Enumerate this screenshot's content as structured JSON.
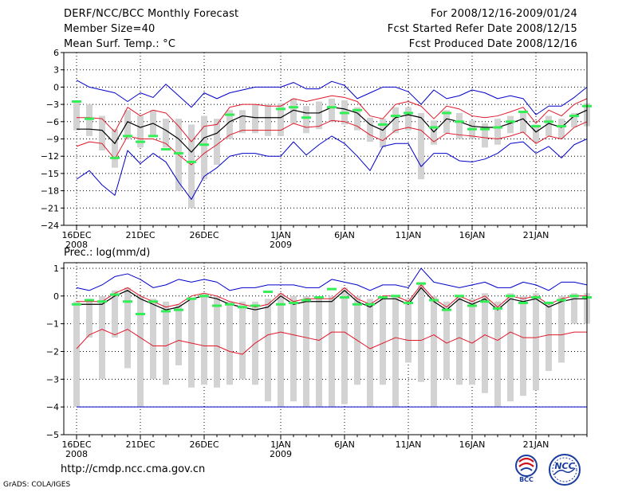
{
  "header": {
    "title": "DERF/NCC/BCC Monthly Forecast",
    "member": "Member Size=40",
    "variable": "Mean Surf. Temp.: °C",
    "period": "For 2008/12/16-2009/01/24",
    "started": "Fcst Started Refer Date 2008/12/15",
    "produced": "Fcst Produced Date 2008/12/16"
  },
  "footer": {
    "url": "http://cmdp.ncc.cma.gov.cn",
    "credit": "GrADS: COLA/IGES",
    "logo_bcc": "BCC",
    "logo_ncc": "NCC"
  },
  "colors": {
    "ensemble_mean": "#000000",
    "spread": "#e0182a",
    "extremes": "#0000cc",
    "box": "#d3d3d3",
    "obs_mark": "#33ee55",
    "grid": "#000000"
  },
  "chart_data": [
    {
      "type": "line",
      "title": "Mean Surf. Temp.: °C",
      "xlabel": "",
      "ylabel": "°C",
      "ylim": [
        -24,
        6
      ],
      "yticks": [
        6,
        3,
        0,
        -3,
        -6,
        -9,
        -12,
        -15,
        -18,
        -21,
        -24
      ],
      "xticks": [
        {
          "day": 1,
          "label": "16DEC",
          "sub": "2008"
        },
        {
          "day": 6,
          "label": "21DEC",
          "sub": ""
        },
        {
          "day": 11,
          "label": "26DEC",
          "sub": ""
        },
        {
          "day": 17,
          "label": "1JAN",
          "sub": "2009"
        },
        {
          "day": 22,
          "label": "6JAN",
          "sub": ""
        },
        {
          "day": 27,
          "label": "11JAN",
          "sub": ""
        },
        {
          "day": 32,
          "label": "16JAN",
          "sub": ""
        },
        {
          "day": 37,
          "label": "21JAN",
          "sub": ""
        }
      ],
      "series": [
        {
          "name": "ensemble mean",
          "values": [
            -7.3,
            -7.3,
            -7.5,
            -9.8,
            -6.0,
            -7.0,
            -6.3,
            -7.5,
            -9.0,
            -11.3,
            -8.8,
            -8.0,
            -6.0,
            -5.0,
            -5.3,
            -5.3,
            -5.3,
            -4.0,
            -4.5,
            -4.5,
            -3.5,
            -3.8,
            -4.5,
            -6.5,
            -7.5,
            -5.3,
            -4.8,
            -5.3,
            -7.8,
            -5.5,
            -6.0,
            -6.8,
            -7.0,
            -7.0,
            -6.3,
            -5.5,
            -7.8,
            -6.3,
            -7.0,
            -5.0,
            -4.0
          ]
        },
        {
          "name": "mean + spread",
          "values": [
            -5.3,
            -5.3,
            -5.5,
            -7.8,
            -3.5,
            -5.0,
            -4.0,
            -4.5,
            -6.8,
            -9.5,
            -6.8,
            -6.5,
            -3.5,
            -3.0,
            -3.0,
            -3.3,
            -3.3,
            -2.0,
            -2.5,
            -2.0,
            -1.5,
            -1.8,
            -2.5,
            -5.0,
            -5.5,
            -3.0,
            -2.5,
            -3.3,
            -5.5,
            -3.3,
            -3.8,
            -5.0,
            -5.3,
            -5.0,
            -4.3,
            -3.5,
            -6.3,
            -4.0,
            -5.0,
            -3.0,
            -2.0
          ]
        },
        {
          "name": "mean - spread",
          "values": [
            -10.3,
            -9.5,
            -9.8,
            -12.5,
            -8.5,
            -9.0,
            -9.0,
            -9.8,
            -11.8,
            -13.5,
            -11.5,
            -10.0,
            -8.3,
            -7.5,
            -7.5,
            -7.5,
            -7.5,
            -6.3,
            -7.0,
            -6.8,
            -5.8,
            -6.0,
            -6.8,
            -8.3,
            -9.3,
            -7.5,
            -7.0,
            -7.5,
            -9.5,
            -8.0,
            -8.3,
            -8.5,
            -8.8,
            -9.0,
            -8.5,
            -7.8,
            -9.8,
            -8.5,
            -9.0,
            -7.0,
            -6.0
          ]
        },
        {
          "name": "max",
          "values": [
            1.2,
            0.0,
            -0.5,
            -1.0,
            -2.5,
            -1.0,
            -1.8,
            0.5,
            -1.5,
            -3.5,
            -1.0,
            -2.0,
            -1.0,
            -0.5,
            0.0,
            0.0,
            0.0,
            0.8,
            -0.3,
            -0.3,
            1.0,
            0.3,
            -2.0,
            -1.0,
            0.0,
            0.0,
            -0.8,
            -3.0,
            -0.5,
            -2.0,
            -1.5,
            -0.5,
            -1.0,
            -2.0,
            -1.5,
            -2.0,
            -4.8,
            -3.3,
            -3.3,
            -1.8,
            0.0
          ]
        },
        {
          "name": "min",
          "values": [
            -16.0,
            -14.5,
            -17.0,
            -18.8,
            -11.0,
            -13.3,
            -11.5,
            -13.0,
            -16.5,
            -19.5,
            -15.5,
            -14.0,
            -12.0,
            -11.5,
            -11.5,
            -12.0,
            -12.0,
            -9.5,
            -11.8,
            -10.0,
            -8.5,
            -9.8,
            -12.0,
            -14.5,
            -10.3,
            -9.8,
            -9.8,
            -13.8,
            -11.5,
            -11.5,
            -12.8,
            -13.0,
            -12.5,
            -11.5,
            -9.8,
            -9.5,
            -11.5,
            -10.3,
            -12.3,
            -10.0,
            -9.0
          ]
        },
        {
          "name": "box high",
          "values": [
            -2.5,
            -3.0,
            -5.0,
            -7.3,
            -4.0,
            -5.0,
            -4.0,
            -5.5,
            -5.5,
            -6.5,
            -5.0,
            -5.5,
            -4.0,
            -4.0,
            -3.0,
            -3.0,
            -2.8,
            -2.0,
            -3.3,
            -2.5,
            -2.0,
            -2.3,
            -3.5,
            -5.3,
            -5.5,
            -3.5,
            -3.5,
            -4.5,
            -5.8,
            -4.0,
            -4.5,
            -5.8,
            -6.3,
            -5.5,
            -5.0,
            -4.3,
            -6.5,
            -5.0,
            -5.5,
            -4.5,
            -2.8
          ]
        },
        {
          "name": "box low",
          "values": [
            -7.5,
            -8.5,
            -11.0,
            -14.0,
            -9.0,
            -10.5,
            -8.5,
            -10.5,
            -18.0,
            -21.0,
            -16.0,
            -13.5,
            -9.0,
            -8.0,
            -8.0,
            -8.5,
            -8.5,
            -6.3,
            -8.0,
            -7.3,
            -6.0,
            -6.5,
            -7.5,
            -9.5,
            -10.5,
            -8.0,
            -7.5,
            -16.0,
            -10.0,
            -8.0,
            -9.0,
            -9.0,
            -10.5,
            -10.0,
            -8.0,
            -8.0,
            -9.5,
            -8.5,
            -9.0,
            -7.0,
            -6.8
          ]
        },
        {
          "name": "observed",
          "values": [
            -2.5,
            -5.5,
            null,
            -12.3,
            -8.5,
            -9.5,
            -8.5,
            -10.8,
            -11.5,
            -13.0,
            -10.0,
            null,
            -4.8,
            null,
            null,
            null,
            -3.8,
            -3.5,
            -5.3,
            null,
            -3.5,
            -4.5,
            -4.0,
            null,
            -6.5,
            -5.0,
            -4.5,
            null,
            -7.0,
            -4.5,
            -6.0,
            -7.3,
            -7.3,
            -7.0,
            -6.0,
            -4.3,
            -6.8,
            -6.0,
            -6.8,
            -5.0,
            -3.3
          ]
        }
      ]
    },
    {
      "type": "line",
      "title": "Prec.: log(mm/d)",
      "xlabel": "",
      "ylabel": "log(mm/d)",
      "ylim": [
        -5,
        1.2
      ],
      "yticks": [
        1,
        0,
        -1,
        -2,
        -3,
        -4,
        -5
      ],
      "xticks": [
        {
          "day": 1,
          "label": "16DEC",
          "sub": "2008"
        },
        {
          "day": 6,
          "label": "21DEC",
          "sub": ""
        },
        {
          "day": 11,
          "label": "26DEC",
          "sub": ""
        },
        {
          "day": 17,
          "label": "1JAN",
          "sub": "2009"
        },
        {
          "day": 22,
          "label": "6JAN",
          "sub": ""
        },
        {
          "day": 27,
          "label": "11JAN",
          "sub": ""
        },
        {
          "day": 32,
          "label": "16JAN",
          "sub": ""
        },
        {
          "day": 37,
          "label": "21JAN",
          "sub": ""
        }
      ],
      "series": [
        {
          "name": "ensemble mean",
          "values": [
            -0.3,
            -0.3,
            -0.3,
            0.0,
            0.2,
            -0.1,
            -0.3,
            -0.5,
            -0.4,
            -0.1,
            0.0,
            -0.1,
            -0.3,
            -0.4,
            -0.5,
            -0.4,
            0.0,
            -0.3,
            -0.2,
            -0.2,
            -0.2,
            0.2,
            -0.2,
            -0.4,
            -0.1,
            -0.1,
            -0.3,
            0.3,
            -0.2,
            -0.5,
            -0.1,
            -0.3,
            -0.1,
            -0.5,
            -0.1,
            -0.2,
            -0.1,
            -0.4,
            -0.2,
            -0.1,
            -0.1
          ]
        },
        {
          "name": "mean + spread",
          "values": [
            -0.2,
            -0.2,
            -0.2,
            0.1,
            0.3,
            0.0,
            -0.2,
            -0.4,
            -0.3,
            0.0,
            0.1,
            0.0,
            -0.2,
            -0.3,
            -0.4,
            -0.3,
            0.1,
            -0.2,
            -0.1,
            -0.1,
            -0.1,
            0.3,
            -0.1,
            -0.3,
            0.0,
            0.0,
            -0.2,
            0.4,
            -0.1,
            -0.4,
            0.0,
            -0.2,
            0.0,
            -0.4,
            0.0,
            -0.1,
            0.0,
            -0.3,
            -0.1,
            0.0,
            0.0
          ]
        },
        {
          "name": "mean - spread",
          "values": [
            -1.9,
            -1.4,
            -1.2,
            -1.4,
            -1.2,
            -1.5,
            -1.8,
            -1.8,
            -1.6,
            -1.7,
            -1.8,
            -1.8,
            -2.0,
            -2.1,
            -1.7,
            -1.4,
            -1.3,
            -1.4,
            -1.5,
            -1.6,
            -1.3,
            -1.3,
            -1.6,
            -1.9,
            -1.7,
            -1.5,
            -1.6,
            -1.6,
            -1.4,
            -1.7,
            -1.5,
            -1.7,
            -1.4,
            -1.6,
            -1.3,
            -1.5,
            -1.5,
            -1.4,
            -1.4,
            -1.3,
            -1.3
          ]
        },
        {
          "name": "max",
          "values": [
            0.3,
            0.2,
            0.4,
            0.7,
            0.8,
            0.6,
            0.3,
            0.4,
            0.6,
            0.5,
            0.6,
            0.5,
            0.2,
            0.3,
            0.3,
            0.4,
            0.4,
            0.4,
            0.3,
            0.3,
            0.6,
            0.5,
            0.4,
            0.2,
            0.4,
            0.4,
            0.3,
            1.0,
            0.5,
            0.4,
            0.3,
            0.4,
            0.5,
            0.3,
            0.3,
            0.5,
            0.4,
            0.2,
            0.5,
            0.5,
            0.4
          ]
        },
        {
          "name": "min",
          "values": [
            -4.0,
            -4.0,
            -4.0,
            -4.0,
            -4.0,
            -4.0,
            -4.0,
            -4.0,
            -4.0,
            -4.0,
            -4.0,
            -4.0,
            -4.0,
            -4.0,
            -4.0,
            -4.0,
            -4.0,
            -4.0,
            -4.0,
            -4.0,
            -4.0,
            -4.0,
            -4.0,
            -4.0,
            -4.0,
            -4.0,
            -4.0,
            -4.0,
            -4.0,
            -4.0,
            -4.0,
            -4.0,
            -4.0,
            -4.0,
            -4.0,
            -4.0,
            -4.0,
            -4.0,
            -4.0,
            -4.0,
            -4.0
          ]
        },
        {
          "name": "box high",
          "values": [
            -0.2,
            -0.1,
            0.0,
            0.2,
            0.3,
            0.0,
            -0.1,
            -0.2,
            -0.3,
            -0.1,
            0.1,
            0.0,
            -0.2,
            -0.2,
            -0.2,
            -0.1,
            0.1,
            0.0,
            0.0,
            0.0,
            0.0,
            0.3,
            0.0,
            -0.1,
            0.0,
            0.0,
            -0.1,
            0.5,
            0.0,
            -0.2,
            0.0,
            -0.1,
            0.1,
            -0.2,
            0.1,
            0.0,
            0.1,
            -0.2,
            0.0,
            0.1,
            0.1
          ]
        },
        {
          "name": "box low",
          "values": [
            -4.0,
            -1.5,
            -3.0,
            -1.5,
            -2.6,
            -4.0,
            -3.0,
            -3.2,
            -2.5,
            -3.3,
            -3.2,
            -3.3,
            -3.2,
            -3.0,
            -3.2,
            -3.8,
            -4.0,
            -3.8,
            -4.0,
            -4.0,
            -4.0,
            -3.9,
            -3.2,
            -4.0,
            -3.2,
            -4.0,
            -2.4,
            -3.1,
            -4.0,
            -3.0,
            -3.2,
            -3.2,
            -3.5,
            -4.0,
            -3.8,
            -3.6,
            -3.4,
            -2.7,
            -2.4,
            -1.0,
            -1.0
          ]
        },
        {
          "name": "observed",
          "values": [
            -0.3,
            -0.15,
            -0.2,
            0.05,
            -0.2,
            -0.65,
            -0.2,
            -0.55,
            -0.5,
            -0.1,
            0.0,
            -0.35,
            -0.3,
            -0.4,
            -0.35,
            0.15,
            -0.3,
            -0.25,
            -0.15,
            -0.05,
            0.25,
            -0.05,
            -0.3,
            -0.3,
            -0.05,
            0.0,
            -0.25,
            0.45,
            -0.15,
            -0.5,
            0.0,
            -0.35,
            -0.2,
            -0.45,
            0.0,
            -0.25,
            -0.05,
            -0.25,
            -0.15,
            0.0,
            -0.05
          ]
        }
      ]
    }
  ]
}
